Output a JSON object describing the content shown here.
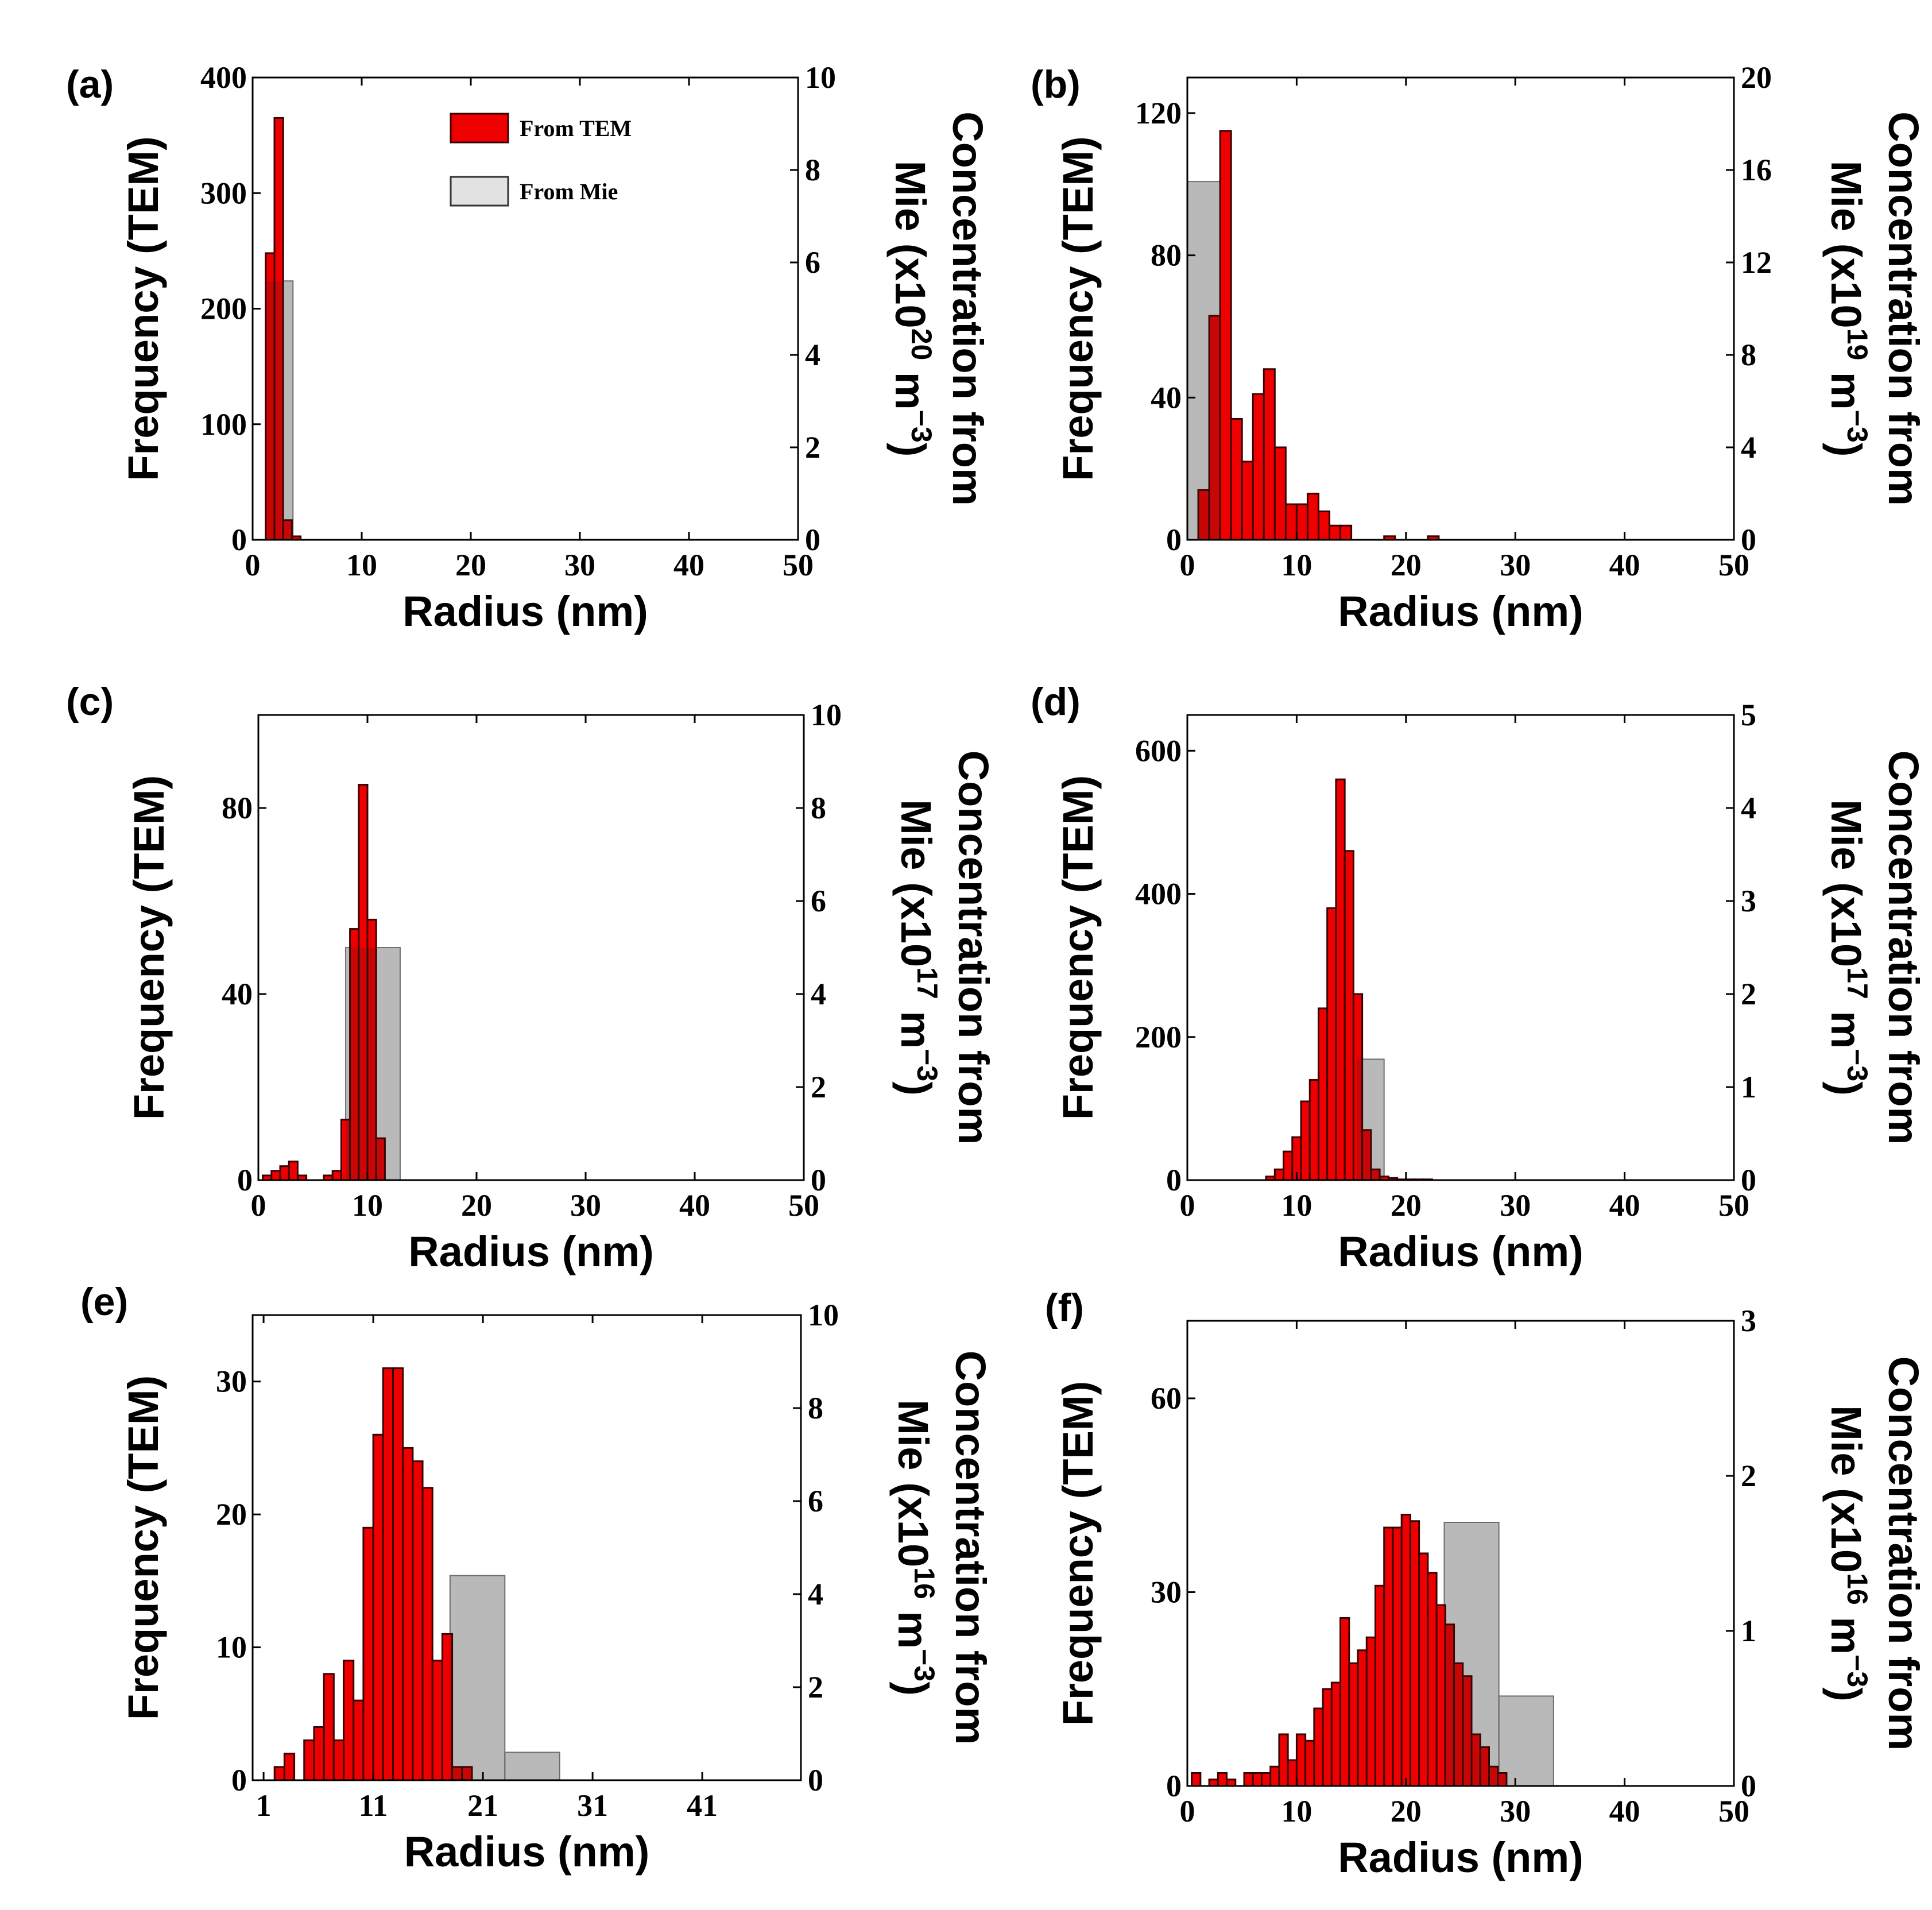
{
  "colors": {
    "tem": "#ee0000",
    "tem_edge": "#3a0000",
    "mie": "#bdbdbd"
  },
  "legend": {
    "tem": "From TEM",
    "mie": "From Mie"
  },
  "chart_data": [
    {
      "type": "bar",
      "panel": "(a)",
      "xlabel": "Radius (nm)",
      "ylabel": "Frequency (TEM)",
      "y2label_lines": [
        "Concentration from",
        "Mie (x10",
        "20",
        " m",
        "−3",
        ")"
      ],
      "xlim": [
        0,
        50
      ],
      "xticks": [
        0,
        10,
        20,
        30,
        40,
        50
      ],
      "ylim": [
        0,
        400
      ],
      "yticks": [
        0,
        100,
        200,
        300,
        400
      ],
      "y2lim": [
        0,
        10
      ],
      "y2ticks": [
        0,
        2,
        4,
        6,
        8,
        10
      ],
      "show_legend": true,
      "tem": {
        "bin_width": 0.8,
        "x": [
          1.2,
          2.0,
          2.8,
          3.6
        ],
        "values": [
          248,
          365,
          17,
          3
        ]
      },
      "mie": {
        "bin_width": 2.5,
        "x": [
          1.2
        ],
        "values": [
          5.6
        ]
      }
    },
    {
      "type": "bar",
      "panel": "(b)",
      "xlabel": "Radius (nm)",
      "ylabel": "Frequency (TEM)",
      "y2label_lines": [
        "Concentration from",
        "Mie (x10",
        "19",
        " m",
        "−3",
        ")"
      ],
      "xlim": [
        0,
        50
      ],
      "xticks": [
        0,
        10,
        20,
        30,
        40,
        50
      ],
      "ylim": [
        0,
        130
      ],
      "yticks": [
        0,
        40,
        80,
        120
      ],
      "y2lim": [
        0,
        20
      ],
      "y2ticks": [
        0,
        4,
        8,
        12,
        16,
        20
      ],
      "show_legend": false,
      "tem": {
        "bin_width": 1,
        "x": [
          1,
          2,
          3,
          4,
          5,
          6,
          7,
          8,
          9,
          10,
          11,
          12,
          13,
          14,
          18,
          22
        ],
        "values": [
          14,
          63,
          115,
          34,
          22,
          41,
          48,
          26,
          10,
          10,
          13,
          8,
          4,
          4,
          1,
          1
        ]
      },
      "mie": {
        "bin_width": 3,
        "x": [
          0
        ],
        "values": [
          15.5
        ]
      }
    },
    {
      "type": "bar",
      "panel": "(c)",
      "xlabel": "Radius (nm)",
      "ylabel": "Frequency (TEM)",
      "y2label_lines": [
        "Concentration from",
        "Mie (x10",
        "17",
        " m",
        "−3",
        ")"
      ],
      "xlim": [
        0,
        50
      ],
      "xticks": [
        0,
        10,
        20,
        30,
        40,
        50
      ],
      "ylim": [
        0,
        100
      ],
      "yticks": [
        0,
        40,
        80
      ],
      "y2lim": [
        0,
        10
      ],
      "y2ticks": [
        0,
        2,
        4,
        6,
        8,
        10
      ],
      "show_legend": false,
      "tem": {
        "bin_width": 0.8,
        "x": [
          0.4,
          1.2,
          2.0,
          2.8,
          3.6,
          4.4,
          5.2,
          6.0,
          6.8,
          7.6,
          8.4,
          9.2,
          10.0,
          10.8
        ],
        "values": [
          1,
          2,
          3,
          4,
          1,
          0,
          0,
          1,
          2,
          13,
          54,
          85,
          56,
          9
        ]
      },
      "mie": {
        "bin_width": 5,
        "x": [
          8.0
        ],
        "values": [
          5.0
        ]
      }
    },
    {
      "type": "bar",
      "panel": "(d)",
      "xlabel": "Radius (nm)",
      "ylabel": "Frequency (TEM)",
      "y2label_lines": [
        "Concentration from",
        "Mie (x10",
        "17",
        " m",
        "−3",
        ")"
      ],
      "xlim": [
        0,
        50
      ],
      "xticks": [
        0,
        10,
        20,
        30,
        40,
        50
      ],
      "ylim": [
        0,
        650
      ],
      "yticks": [
        0,
        200,
        400,
        600
      ],
      "y2lim": [
        0,
        5
      ],
      "y2ticks": [
        0,
        1,
        2,
        3,
        4,
        5
      ],
      "show_legend": false,
      "tem": {
        "bin_width": 0.8,
        "x": [
          7.2,
          8.0,
          8.8,
          9.6,
          10.4,
          11.2,
          12.0,
          12.8,
          13.6,
          14.4,
          15.2,
          16.0,
          16.8,
          17.6,
          18.4,
          19.2,
          20.0,
          20.8,
          21.6
        ],
        "values": [
          5,
          15,
          40,
          60,
          110,
          140,
          240,
          380,
          560,
          460,
          260,
          70,
          15,
          5,
          3,
          1,
          1,
          1,
          1
        ]
      },
      "mie": {
        "bin_width": 2.5,
        "x": [
          15.5
        ],
        "values": [
          1.3
        ]
      }
    },
    {
      "type": "bar",
      "panel": "(e)",
      "xlabel": "Radius (nm)",
      "ylabel": "Frequency (TEM)",
      "y2label_lines": [
        "Concentration from",
        "Mie (x10",
        "16",
        " m",
        "−3",
        ")"
      ],
      "xlim": [
        0,
        50
      ],
      "xticks": [
        1,
        11,
        21,
        31,
        41
      ],
      "ylim": [
        0,
        35
      ],
      "yticks": [
        0,
        10,
        20,
        30
      ],
      "y2lim": [
        0,
        10
      ],
      "y2ticks": [
        0,
        2,
        4,
        6,
        8,
        10
      ],
      "show_legend": false,
      "tem": {
        "bin_width": 0.9,
        "x": [
          2.0,
          2.9,
          3.8,
          4.7,
          5.6,
          6.5,
          7.4,
          8.3,
          9.2,
          10.1,
          11.0,
          11.9,
          12.8,
          13.7,
          14.6,
          15.5,
          16.4,
          17.3,
          18.2,
          19.1,
          20.0,
          20.9,
          21.8
        ],
        "values": [
          1,
          2,
          0,
          3,
          4,
          8,
          3,
          9,
          6,
          19,
          26,
          31,
          31,
          25,
          24,
          22,
          9,
          11,
          1,
          1,
          0,
          0,
          0
        ]
      },
      "mie": {
        "bin_width": 5,
        "x": [
          18.0,
          23.0
        ],
        "values": [
          4.4,
          0.6
        ]
      }
    },
    {
      "type": "bar",
      "panel": "(f)",
      "xlabel": "Radius (nm)",
      "ylabel": "Frequency (TEM)",
      "y2label_lines": [
        "Concentration from",
        "Mie (x10",
        "16",
        " m",
        "−3",
        ")"
      ],
      "xlim": [
        0,
        50
      ],
      "xticks": [
        0,
        10,
        20,
        30,
        40,
        50
      ],
      "ylim": [
        0,
        72
      ],
      "yticks": [
        0,
        30,
        60
      ],
      "y2lim": [
        0,
        3
      ],
      "y2ticks": [
        0,
        1,
        2,
        3
      ],
      "show_legend": false,
      "tem": {
        "bin_width": 0.8,
        "x": [
          0.4,
          1.2,
          2.0,
          2.8,
          3.6,
          4.4,
          5.2,
          6.0,
          6.8,
          7.6,
          8.4,
          9.2,
          10.0,
          10.8,
          11.6,
          12.4,
          13.2,
          14.0,
          14.8,
          15.6,
          16.4,
          17.2,
          18.0,
          18.8,
          19.6,
          20.4,
          21.2,
          22.0,
          22.8,
          23.6,
          24.4,
          25.2,
          26.0,
          26.8,
          27.6,
          28.4,
          29.2,
          30.0
        ],
        "values": [
          2,
          0,
          1,
          2,
          1,
          0,
          2,
          2,
          2,
          3,
          8,
          4,
          8,
          7,
          12,
          15,
          16,
          26,
          19,
          21,
          23,
          31,
          40,
          40,
          42,
          41,
          36,
          33,
          28,
          25,
          19,
          17,
          8,
          6,
          3,
          2,
          0,
          0
        ]
      },
      "mie": {
        "bin_width": 5,
        "x": [
          23.5,
          28.5
        ],
        "values": [
          1.7,
          0.58
        ]
      }
    }
  ]
}
